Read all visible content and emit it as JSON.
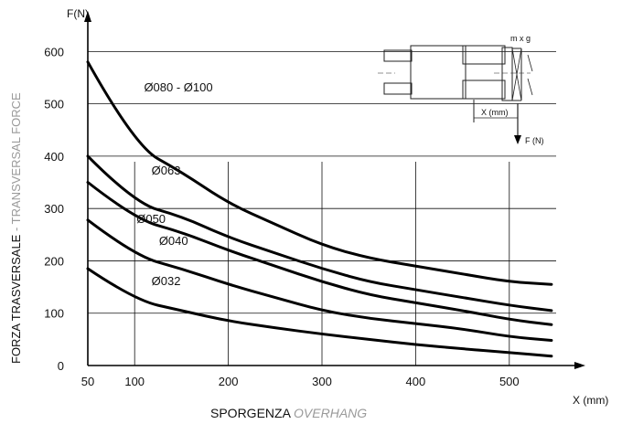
{
  "chart_data": {
    "type": "line",
    "y_axis_unit": "F(N)",
    "x_axis_unit": "X (mm)",
    "ylabel_main": "FORZA TRASVERSALE",
    "ylabel_sep": " - ",
    "ylabel_alt": "TRANSVERSAL FORCE",
    "xlabel_main": "SPORGENZA",
    "xlabel_alt": "OVERHANG",
    "x_ticks": [
      50,
      100,
      200,
      300,
      400,
      500
    ],
    "y_ticks": [
      0,
      100,
      200,
      300,
      400,
      500,
      600
    ],
    "xlim": [
      50,
      550
    ],
    "ylim": [
      0,
      660
    ],
    "grid": true,
    "series": [
      {
        "name": "Ø080 - Ø100",
        "x": [
          50,
          100,
          150,
          200,
          250,
          300,
          350,
          400,
          450,
          500,
          545
        ],
        "y": [
          580,
          420,
          370,
          310,
          270,
          230,
          205,
          190,
          175,
          160,
          155
        ]
      },
      {
        "name": "Ø063",
        "x": [
          50,
          100,
          150,
          200,
          250,
          300,
          350,
          400,
          450,
          500,
          545
        ],
        "y": [
          400,
          310,
          285,
          245,
          215,
          185,
          160,
          145,
          130,
          115,
          105
        ]
      },
      {
        "name": "Ø050",
        "x": [
          50,
          100,
          150,
          200,
          250,
          300,
          350,
          400,
          450,
          500,
          545
        ],
        "y": [
          350,
          280,
          255,
          220,
          190,
          160,
          135,
          120,
          105,
          88,
          78
        ]
      },
      {
        "name": "Ø040",
        "x": [
          50,
          100,
          150,
          200,
          250,
          300,
          350,
          400,
          450,
          500,
          545
        ],
        "y": [
          278,
          210,
          185,
          155,
          130,
          105,
          90,
          80,
          70,
          55,
          48
        ]
      },
      {
        "name": "Ø032",
        "x": [
          50,
          100,
          150,
          200,
          250,
          300,
          350,
          400,
          450,
          500,
          545
        ],
        "y": [
          185,
          125,
          105,
          85,
          72,
          60,
          50,
          40,
          32,
          25,
          18
        ]
      }
    ],
    "inset_diagram": {
      "load_label": "m x g",
      "overhang_label": "X (mm)",
      "force_label": "F (N)"
    }
  }
}
